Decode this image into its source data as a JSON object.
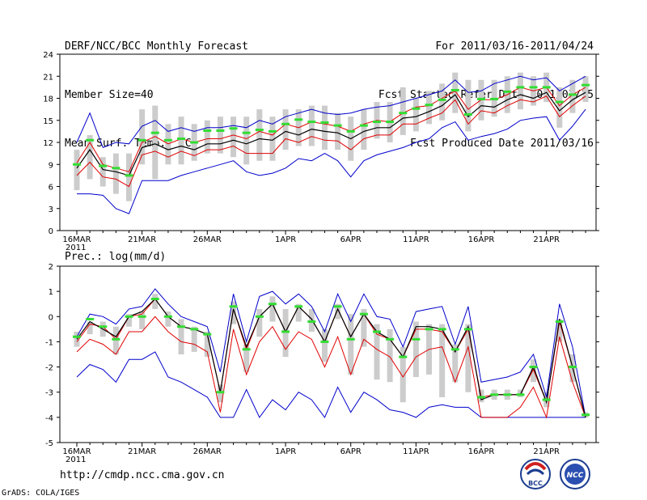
{
  "header": {
    "left": [
      "DERF/NCC/BCC Monthly Forecast",
      "Member Size=40",
      "Mean Surf. Temp.: °C"
    ],
    "right": [
      "For 2011/03/16-2011/04/24",
      "Fcst Started Refer Date 2011/03/15",
      "Fcst Produced Date 2011/03/16"
    ]
  },
  "footer": {
    "url": "http://cmdp.ncc.cma.gov.cn",
    "credit": "GrADS: COLA/IGES",
    "logo1_text": "BCC",
    "logo2_text": "NCC"
  },
  "colors": {
    "envelope": "#0000cc",
    "quartile": "#e00000",
    "mean": "#000000",
    "box": "#cccccc",
    "median": "#33dd33"
  },
  "chart_data": [
    {
      "type": "line",
      "title": "Mean Surf. Temp.: °C",
      "x": [
        "16MAR",
        "17MAR",
        "18MAR",
        "19MAR",
        "20MAR",
        "21MAR",
        "22MAR",
        "23MAR",
        "24MAR",
        "25MAR",
        "26MAR",
        "27MAR",
        "28MAR",
        "29MAR",
        "30MAR",
        "31MAR",
        "1APR",
        "2APR",
        "3APR",
        "4APR",
        "5APR",
        "6APR",
        "7APR",
        "8APR",
        "9APR",
        "10APR",
        "11APR",
        "12APR",
        "13APR",
        "14APR",
        "15APR",
        "16APR",
        "17APR",
        "18APR",
        "19APR",
        "20APR",
        "21APR",
        "22APR",
        "23APR",
        "24APR"
      ],
      "xticks": [
        "16MAR",
        "21MAR",
        "26MAR",
        "1APR",
        "6APR",
        "11APR",
        "16APR",
        "21APR"
      ],
      "xtick_index": [
        0,
        5,
        10,
        16,
        21,
        26,
        31,
        36
      ],
      "year_label": "2011",
      "ylim": [
        0,
        24
      ],
      "yticks": [
        0,
        3,
        6,
        9,
        12,
        15,
        18,
        21,
        24
      ],
      "series": [
        {
          "name": "max",
          "values": [
            12.0,
            16.0,
            11.3,
            12.0,
            11.8,
            14.2,
            15.0,
            13.5,
            14.0,
            13.5,
            14.0,
            14.0,
            14.3,
            14.0,
            15.0,
            14.5,
            15.5,
            16.0,
            16.5,
            16.0,
            15.8,
            16.0,
            16.5,
            16.8,
            17.0,
            17.5,
            18.0,
            18.5,
            19.0,
            20.5,
            18.8,
            19.0,
            20.0,
            20.5,
            21.0,
            20.5,
            20.8,
            19.0,
            20.0,
            21.0
          ]
        },
        {
          "name": "q3",
          "values": [
            9.2,
            12.0,
            9.0,
            8.5,
            8.0,
            12.0,
            12.8,
            11.8,
            12.5,
            12.0,
            12.5,
            12.5,
            13.0,
            12.5,
            13.5,
            13.0,
            14.5,
            14.0,
            14.8,
            14.5,
            14.2,
            13.5,
            14.5,
            15.0,
            14.8,
            16.0,
            16.8,
            17.0,
            18.0,
            19.0,
            16.5,
            17.8,
            17.8,
            18.5,
            19.5,
            19.0,
            19.5,
            17.0,
            18.5,
            19.5
          ]
        },
        {
          "name": "mean",
          "values": [
            8.5,
            11.0,
            8.3,
            8.0,
            7.5,
            11.3,
            11.8,
            11.0,
            11.5,
            11.0,
            11.8,
            11.8,
            12.3,
            11.8,
            12.5,
            12.3,
            13.5,
            13.0,
            13.8,
            13.5,
            13.3,
            12.5,
            13.5,
            14.0,
            14.0,
            15.3,
            15.5,
            16.2,
            17.0,
            18.5,
            15.5,
            17.0,
            16.8,
            17.8,
            18.5,
            18.0,
            18.8,
            16.3,
            17.8,
            18.8
          ]
        },
        {
          "name": "q1",
          "values": [
            7.5,
            9.3,
            7.3,
            7.0,
            6.0,
            10.3,
            10.8,
            10.0,
            10.8,
            10.2,
            11.0,
            11.0,
            11.5,
            10.5,
            10.5,
            10.5,
            12.5,
            12.0,
            12.8,
            12.3,
            12.2,
            11.0,
            12.5,
            13.0,
            13.0,
            14.5,
            14.5,
            15.3,
            16.0,
            17.8,
            14.5,
            16.3,
            16.0,
            17.0,
            17.8,
            17.5,
            18.3,
            15.5,
            17.0,
            18.3
          ]
        },
        {
          "name": "min",
          "values": [
            5.0,
            5.0,
            4.8,
            3.0,
            2.3,
            6.8,
            6.8,
            6.8,
            7.5,
            8.0,
            8.5,
            9.0,
            9.5,
            8.0,
            7.5,
            7.8,
            8.5,
            9.8,
            9.5,
            10.5,
            9.5,
            7.3,
            9.5,
            10.3,
            10.8,
            11.3,
            12.0,
            12.5,
            14.0,
            14.8,
            12.3,
            12.8,
            13.2,
            13.8,
            15.0,
            15.3,
            15.5,
            12.3,
            14.2,
            16.5
          ]
        },
        {
          "name": "box_low",
          "values": [
            5.5,
            7.0,
            6.0,
            5.0,
            4.0,
            9.0,
            7.0,
            9.0,
            9.0,
            9.5,
            10.5,
            10.5,
            10.0,
            9.0,
            9.5,
            9.5,
            11.0,
            11.5,
            11.5,
            11.0,
            11.0,
            9.5,
            11.0,
            12.5,
            12.0,
            13.0,
            13.5,
            14.5,
            15.0,
            16.0,
            13.5,
            15.0,
            15.5,
            16.0,
            16.5,
            17.0,
            17.5,
            14.0,
            16.0,
            17.5
          ]
        },
        {
          "name": "box_high",
          "values": [
            11.0,
            13.0,
            10.0,
            10.5,
            10.5,
            16.5,
            17.0,
            14.5,
            15.5,
            14.5,
            15.0,
            15.5,
            15.5,
            15.5,
            16.5,
            15.5,
            16.5,
            16.5,
            17.0,
            17.0,
            16.0,
            15.5,
            16.5,
            17.5,
            17.5,
            19.5,
            18.0,
            19.0,
            20.0,
            21.5,
            20.5,
            20.5,
            20.5,
            21.0,
            21.5,
            21.0,
            21.5,
            19.5,
            20.5,
            21.0
          ]
        },
        {
          "name": "median",
          "values": [
            9.0,
            12.3,
            8.8,
            8.5,
            7.5,
            12.3,
            13.3,
            12.3,
            12.5,
            12.0,
            13.6,
            13.6,
            13.9,
            13.3,
            13.7,
            13.5,
            14.5,
            15.1,
            14.8,
            14.7,
            14.3,
            13.5,
            14.3,
            14.8,
            14.8,
            16.0,
            16.6,
            17.1,
            17.8,
            19.1,
            15.8,
            17.9,
            17.9,
            18.9,
            19.5,
            19.5,
            19.5,
            17.5,
            18.5,
            19.8
          ]
        }
      ]
    },
    {
      "type": "line",
      "title": "Prec.: log(mm/d)",
      "x": [
        "16MAR",
        "17MAR",
        "18MAR",
        "19MAR",
        "20MAR",
        "21MAR",
        "22MAR",
        "23MAR",
        "24MAR",
        "25MAR",
        "26MAR",
        "27MAR",
        "28MAR",
        "29MAR",
        "30MAR",
        "31MAR",
        "1APR",
        "2APR",
        "3APR",
        "4APR",
        "5APR",
        "6APR",
        "7APR",
        "8APR",
        "9APR",
        "10APR",
        "11APR",
        "12APR",
        "13APR",
        "14APR",
        "15APR",
        "16APR",
        "17APR",
        "18APR",
        "19APR",
        "20APR",
        "21APR",
        "22APR",
        "23APR",
        "24APR"
      ],
      "xticks": [
        "16MAR",
        "21MAR",
        "26MAR",
        "1APR",
        "6APR",
        "11APR",
        "16APR",
        "21APR"
      ],
      "xtick_index": [
        0,
        5,
        10,
        16,
        21,
        26,
        31,
        36
      ],
      "year_label": "2011",
      "ylim": [
        -5,
        2
      ],
      "yticks": [
        -5,
        -4,
        -3,
        -2,
        -1,
        0,
        1,
        2
      ],
      "series": [
        {
          "name": "max",
          "values": [
            -0.8,
            0.1,
            0.0,
            -0.3,
            0.3,
            0.4,
            1.1,
            0.5,
            0.0,
            -0.2,
            -0.4,
            -2.2,
            0.9,
            -1.0,
            0.8,
            1.0,
            0.5,
            0.9,
            0.4,
            -0.6,
            0.9,
            -0.2,
            0.9,
            0.0,
            -0.1,
            -1.2,
            0.2,
            0.3,
            0.4,
            -1.1,
            0.4,
            -2.6,
            -2.5,
            -2.4,
            -2.2,
            -1.5,
            -3.2,
            0.5,
            -1.2,
            -4.0
          ]
        },
        {
          "name": "q3",
          "values": [
            -1.0,
            -0.3,
            -0.4,
            -0.9,
            0.0,
            0.1,
            0.7,
            0.0,
            -0.4,
            -0.5,
            -0.7,
            -3.0,
            0.3,
            -1.3,
            0.0,
            0.5,
            -0.6,
            0.4,
            -0.1,
            -1.0,
            0.3,
            -0.8,
            0.1,
            -0.7,
            -0.9,
            -1.6,
            -0.5,
            -0.5,
            -0.6,
            -1.4,
            -0.5,
            -3.2,
            -3.1,
            -3.1,
            -3.1,
            -2.1,
            -3.4,
            -0.2,
            -2.0,
            -4.0
          ]
        },
        {
          "name": "mean",
          "values": [
            -0.9,
            -0.2,
            -0.5,
            -0.8,
            0.0,
            0.2,
            0.7,
            0.0,
            -0.4,
            -0.5,
            -0.7,
            -3.0,
            0.3,
            -1.2,
            0.0,
            0.5,
            -0.6,
            0.4,
            -0.1,
            -1.0,
            0.3,
            -0.8,
            0.1,
            -0.6,
            -0.9,
            -1.6,
            -0.4,
            -0.4,
            -0.5,
            -1.4,
            -0.4,
            -3.3,
            -3.1,
            -3.1,
            -3.1,
            -2.0,
            -3.4,
            -0.1,
            -2.0,
            -4.0
          ]
        },
        {
          "name": "q1",
          "values": [
            -1.4,
            -0.9,
            -1.1,
            -1.5,
            -0.6,
            -0.6,
            0.0,
            -0.6,
            -1.0,
            -1.1,
            -1.4,
            -3.8,
            -0.5,
            -2.3,
            -1.0,
            -0.4,
            -1.3,
            -0.6,
            -0.9,
            -2.0,
            -0.8,
            -2.3,
            -0.9,
            -1.3,
            -1.6,
            -2.4,
            -1.6,
            -1.3,
            -1.2,
            -2.6,
            -1.2,
            -4.0,
            -4.0,
            -4.0,
            -3.6,
            -2.8,
            -4.0,
            -0.8,
            -2.6,
            -4.0
          ]
        },
        {
          "name": "min",
          "values": [
            -2.4,
            -1.9,
            -2.1,
            -2.6,
            -1.7,
            -1.7,
            -1.4,
            -2.4,
            -2.6,
            -2.9,
            -3.2,
            -4.0,
            -4.0,
            -2.9,
            -4.0,
            -3.3,
            -3.7,
            -3.0,
            -3.3,
            -4.0,
            -2.8,
            -3.8,
            -3.0,
            -3.3,
            -3.7,
            -3.8,
            -4.0,
            -3.6,
            -3.5,
            -3.6,
            -3.6,
            -4.0,
            -4.0,
            -4.0,
            -4.0,
            -4.0,
            -4.0,
            -4.0,
            -4.0,
            -4.0
          ]
        },
        {
          "name": "box_low",
          "values": [
            -1.2,
            -0.7,
            -0.8,
            -1.5,
            -0.4,
            -0.5,
            0.3,
            -0.4,
            -1.5,
            -1.4,
            -1.6,
            -3.4,
            -0.3,
            -2.2,
            -0.8,
            -0.2,
            -1.6,
            -0.2,
            -0.6,
            -1.8,
            -0.1,
            -2.3,
            -1.2,
            -2.5,
            -2.6,
            -3.4,
            -2.4,
            -2.3,
            -3.2,
            -2.6,
            -3.0,
            -3.4,
            -3.3,
            -3.3,
            -3.2,
            -2.6,
            -3.6,
            -1.0,
            -2.6,
            -4.0
          ]
        },
        {
          "name": "box_high",
          "values": [
            -0.6,
            -0.2,
            -0.2,
            -0.4,
            0.1,
            0.2,
            0.9,
            0.2,
            -0.1,
            -0.4,
            -0.6,
            -2.7,
            0.6,
            -1.1,
            0.3,
            0.8,
            0.3,
            0.5,
            0.3,
            -0.5,
            0.5,
            0.1,
            0.3,
            -0.3,
            -0.5,
            -1.2,
            -0.2,
            -0.3,
            -0.3,
            -1.1,
            -0.3,
            -2.9,
            -2.9,
            -2.9,
            -2.9,
            -1.7,
            -3.0,
            -0.1,
            -1.5,
            -3.8
          ]
        },
        {
          "name": "median",
          "values": [
            -0.8,
            -0.1,
            -0.4,
            -0.9,
            0.0,
            0.0,
            0.7,
            0.0,
            -0.4,
            -0.5,
            -0.7,
            -3.0,
            0.4,
            -1.3,
            0.0,
            0.5,
            -0.6,
            0.4,
            -0.2,
            -1.0,
            0.4,
            -0.9,
            0.1,
            -0.6,
            -0.9,
            -1.6,
            -0.9,
            -0.5,
            -0.5,
            -1.3,
            -0.5,
            -3.2,
            -3.1,
            -3.1,
            -3.1,
            -2.0,
            -3.3,
            -0.2,
            -2.0,
            -3.9
          ]
        }
      ]
    }
  ]
}
